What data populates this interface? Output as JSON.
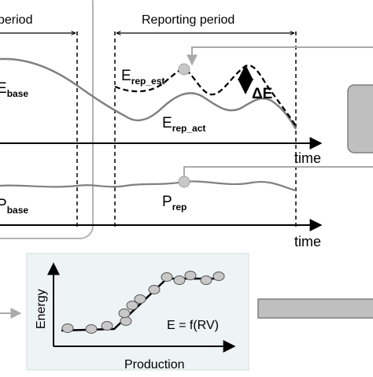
{
  "top": {
    "baseline_period_label": "period",
    "reporting_period_label": "Reporting period",
    "e_base": {
      "main": "E",
      "sub": "base"
    },
    "e_rep_est": {
      "main": "E",
      "sub": "rep_est"
    },
    "e_rep_act": {
      "main": "E",
      "sub": "rep_act"
    },
    "delta_e": "ΔE",
    "time_label": "time"
  },
  "middle": {
    "p_base": {
      "main": "P",
      "sub": "base"
    },
    "p_rep": {
      "main": "P",
      "sub": "rep"
    },
    "time_label": "time"
  },
  "regression": {
    "y_label": "Energy",
    "x_label": "Production",
    "equation": "E = f(RV)"
  },
  "colors": {
    "curve_gray": "#808080",
    "box_fill": "#bfbfbf",
    "panel_fill": "#eef3f5",
    "marker_fill": "#c8c8c8",
    "arrow_gray": "#aaaaaa"
  }
}
